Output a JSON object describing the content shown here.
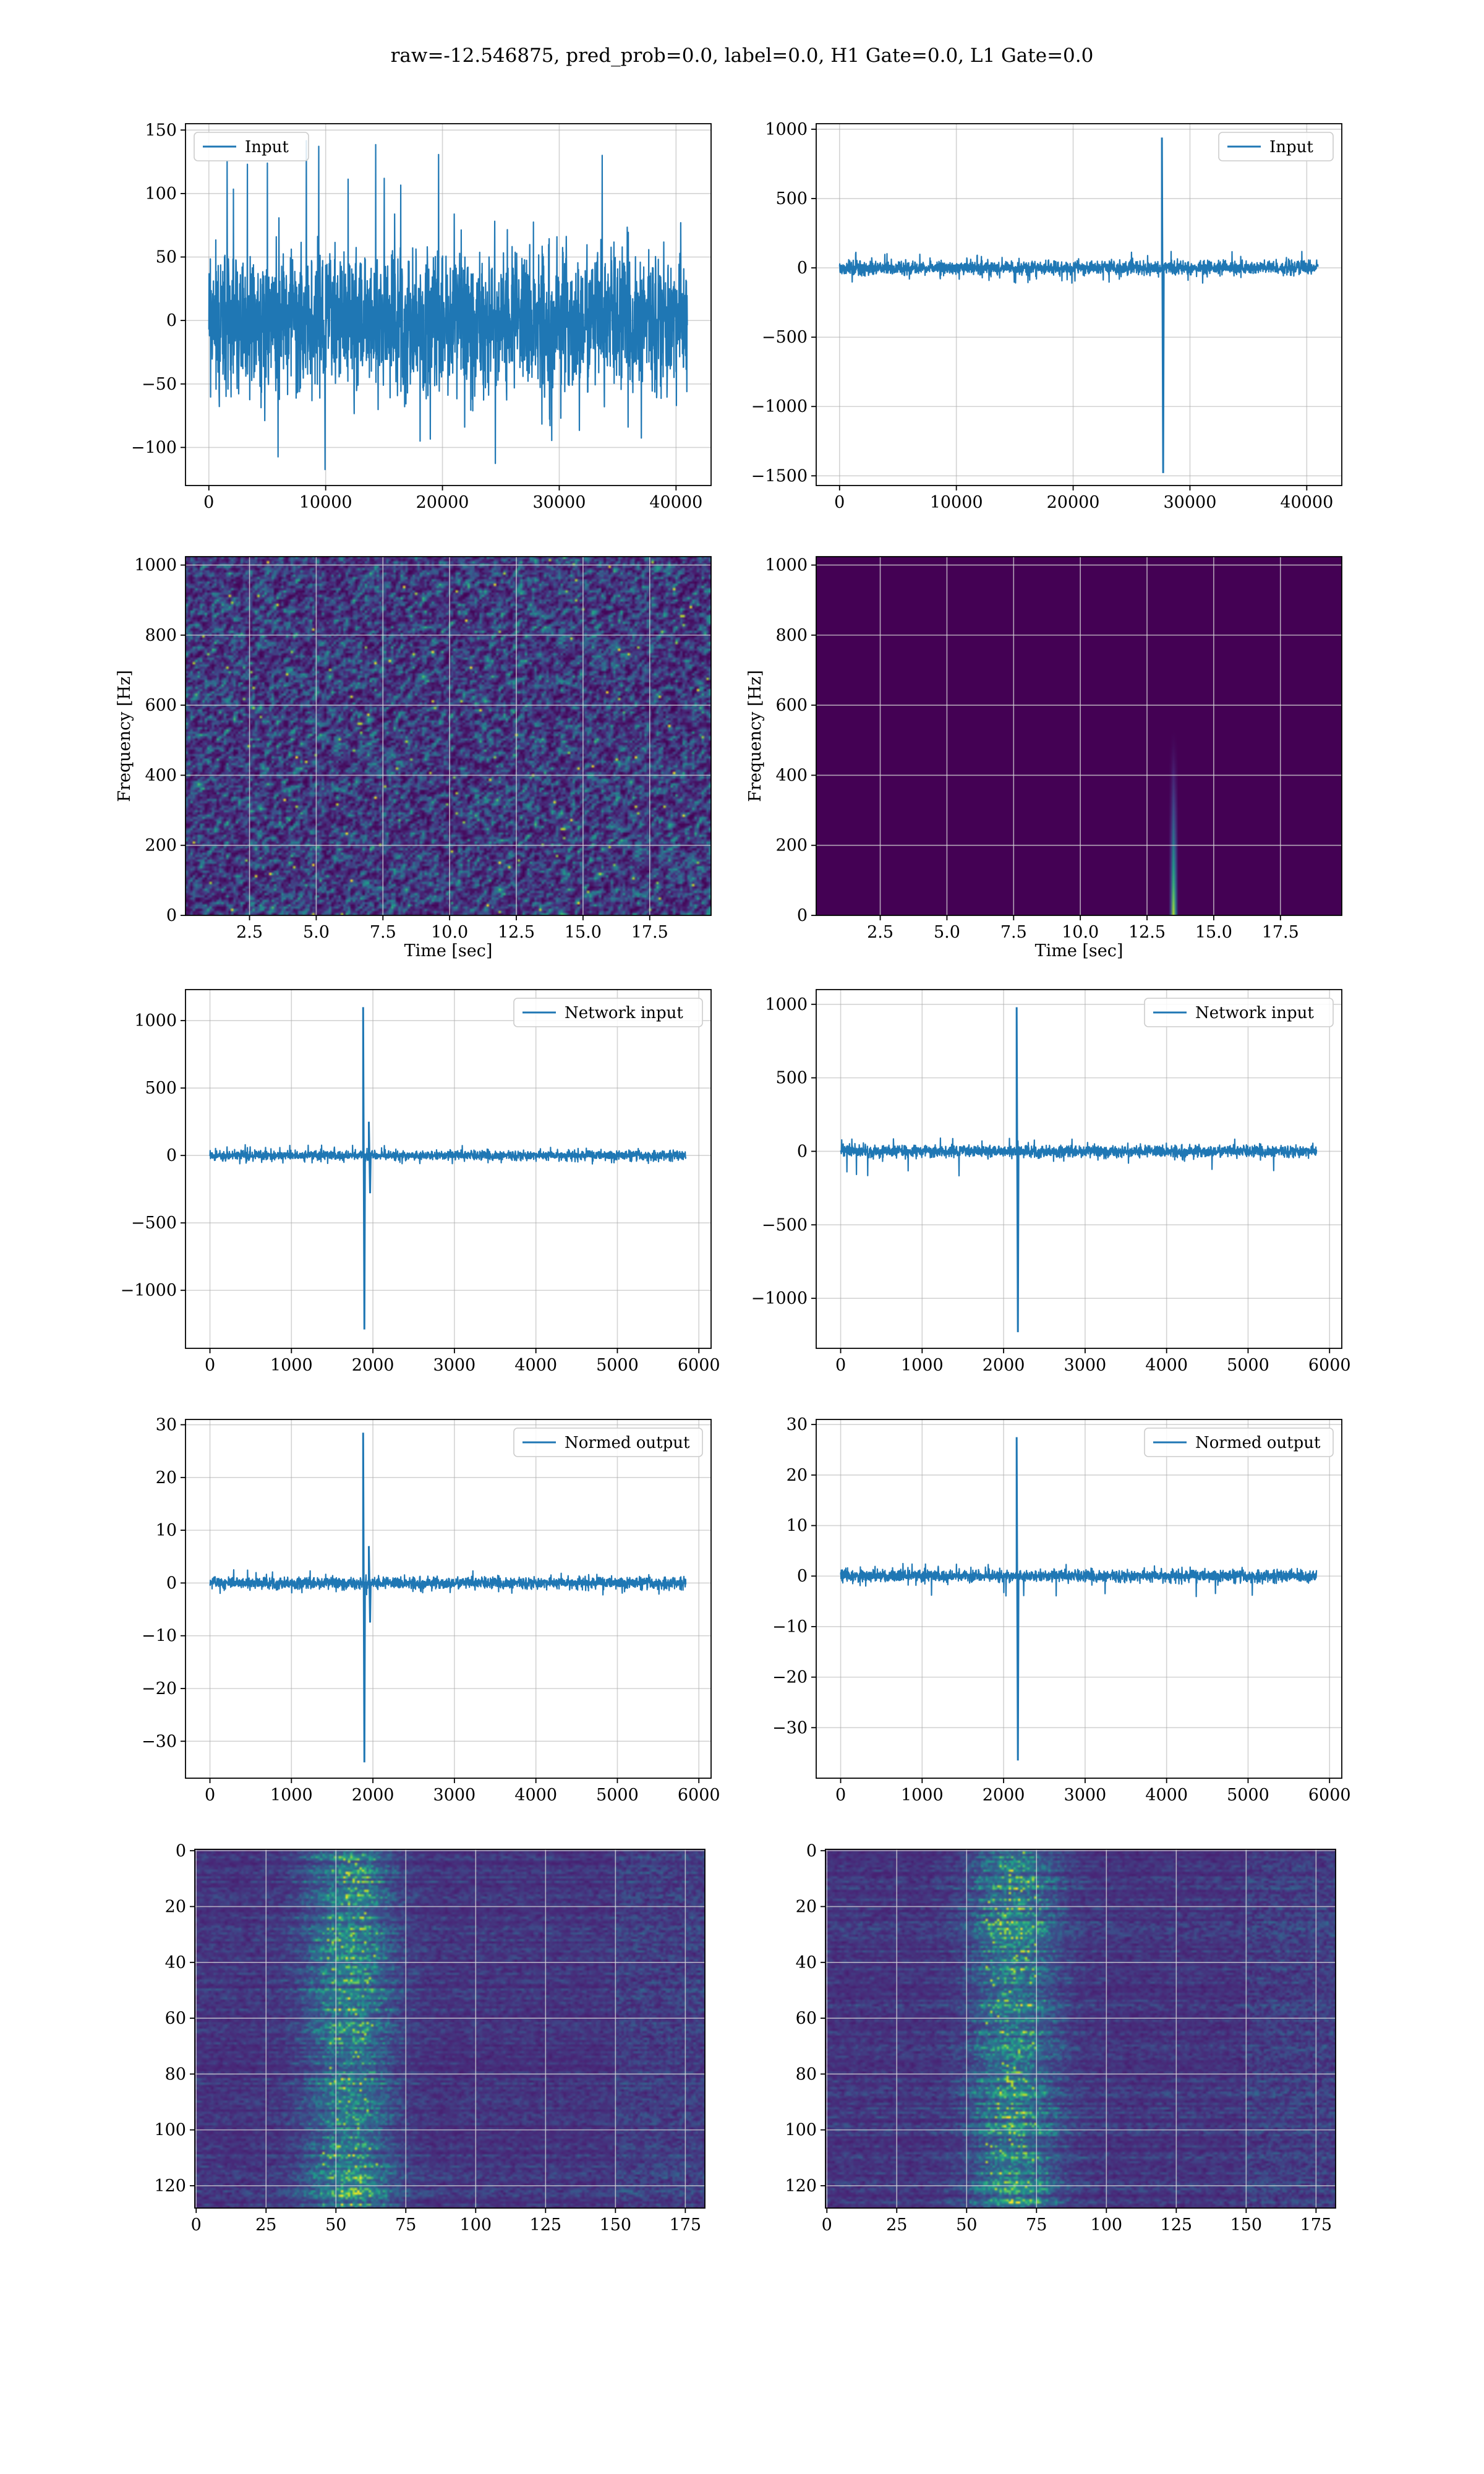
{
  "figure": {
    "suptitle": "raw=-12.546875, pred_prob=0.0, label=0.0, H1 Gate=0.0, L1 Gate=0.0"
  },
  "colors": {
    "line": "#1f77b4",
    "grid": "#b0b0b0"
  },
  "chart_data": [
    {
      "id": "input-h1",
      "type": "line",
      "legend": "Input",
      "legend_loc": "upper-left",
      "xlim": [
        -2000,
        43000
      ],
      "ylim": [
        -130,
        155
      ],
      "xticks": [
        0,
        10000,
        20000,
        30000,
        40000
      ],
      "xticklabels": [
        "0",
        "10000",
        "20000",
        "30000",
        "40000"
      ],
      "yticks": [
        -100,
        -50,
        0,
        50,
        100,
        150
      ],
      "yticklabels": [
        "−100",
        "−50",
        "0",
        "50",
        "100",
        "150"
      ],
      "x_range": [
        0,
        40960
      ],
      "noise_sigma": 28,
      "noise_extreme": [
        -120,
        142
      ],
      "spikes": []
    },
    {
      "id": "input-l1",
      "type": "line",
      "legend": "Input",
      "legend_loc": "upper-right",
      "xlim": [
        -2000,
        43000
      ],
      "ylim": [
        -1570,
        1040
      ],
      "xticks": [
        0,
        10000,
        20000,
        30000,
        40000
      ],
      "xticklabels": [
        "0",
        "10000",
        "20000",
        "30000",
        "40000"
      ],
      "yticks": [
        -1500,
        -1000,
        -500,
        0,
        500,
        1000
      ],
      "yticklabels": [
        "−1500",
        "−1000",
        "−500",
        "0",
        "500",
        "1000"
      ],
      "x_range": [
        0,
        40960
      ],
      "noise_sigma": 25,
      "noise_extreme": [
        -110,
        120
      ],
      "spikes": [
        {
          "x": 27600,
          "max": 940,
          "min": -1480
        }
      ]
    },
    {
      "id": "spectrogram-h1",
      "type": "heatmap",
      "xlabel": "Time [sec]",
      "ylabel": "Frequency [Hz]",
      "xlim": [
        0.1,
        19.8
      ],
      "ylim": [
        0,
        1024
      ],
      "xticks": [
        2.5,
        5.0,
        7.5,
        10.0,
        12.5,
        15.0,
        17.5
      ],
      "xticklabels": [
        "2.5",
        "5.0",
        "7.5",
        "10.0",
        "12.5",
        "15.0",
        "17.5"
      ],
      "yticks": [
        0,
        200,
        400,
        600,
        800,
        1000
      ],
      "yticklabels": [
        "0",
        "200",
        "400",
        "600",
        "800",
        "1000"
      ],
      "pattern": "noise"
    },
    {
      "id": "spectrogram-l1",
      "type": "heatmap",
      "xlabel": "Time [sec]",
      "ylabel": "Frequency [Hz]",
      "xlim": [
        0.1,
        19.8
      ],
      "ylim": [
        0,
        1024
      ],
      "xticks": [
        2.5,
        5.0,
        7.5,
        10.0,
        12.5,
        15.0,
        17.5
      ],
      "xticklabels": [
        "2.5",
        "5.0",
        "7.5",
        "10.0",
        "12.5",
        "15.0",
        "17.5"
      ],
      "yticks": [
        0,
        200,
        400,
        600,
        800,
        1000
      ],
      "yticklabels": [
        "0",
        "200",
        "400",
        "600",
        "800",
        "1000"
      ],
      "pattern": "glitch",
      "glitch_time": 13.5,
      "glitch_freq_max": 540
    },
    {
      "id": "network-input-h1",
      "type": "line",
      "legend": "Network input",
      "legend_loc": "upper-right",
      "xlim": [
        -300,
        6150
      ],
      "ylim": [
        -1430,
        1230
      ],
      "xticks": [
        0,
        1000,
        2000,
        3000,
        4000,
        5000,
        6000
      ],
      "xticklabels": [
        "0",
        "1000",
        "2000",
        "3000",
        "4000",
        "5000",
        "6000"
      ],
      "yticks": [
        -1000,
        -500,
        0,
        500,
        1000
      ],
      "yticklabels": [
        "−1000",
        "−500",
        "0",
        "500",
        "1000"
      ],
      "x_range": [
        0,
        5840
      ],
      "noise_sigma": 18,
      "noise_extreme": [
        -70,
        80
      ],
      "spikes": [
        {
          "x": 1880,
          "max": 1100,
          "min": -1290
        },
        {
          "x": 1950,
          "max": 250,
          "min": -280
        }
      ]
    },
    {
      "id": "network-input-l1",
      "type": "line",
      "legend": "Network input",
      "legend_loc": "upper-right",
      "xlim": [
        -300,
        6150
      ],
      "ylim": [
        -1340,
        1100
      ],
      "xticks": [
        0,
        1000,
        2000,
        3000,
        4000,
        5000,
        6000
      ],
      "xticklabels": [
        "0",
        "1000",
        "2000",
        "3000",
        "4000",
        "5000",
        "6000"
      ],
      "yticks": [
        -1000,
        -500,
        0,
        500,
        1000
      ],
      "yticklabels": [
        "−1000",
        "−500",
        "0",
        "500",
        "1000"
      ],
      "x_range": [
        0,
        5840
      ],
      "noise_sigma": 20,
      "noise_extreme": [
        -170,
        90
      ],
      "spikes": [
        {
          "x": 2160,
          "max": 980,
          "min": -1230
        }
      ]
    },
    {
      "id": "normed-output-h1",
      "type": "line",
      "legend": "Normed output",
      "legend_loc": "upper-right",
      "xlim": [
        -300,
        6150
      ],
      "ylim": [
        -37,
        31
      ],
      "xticks": [
        0,
        1000,
        2000,
        3000,
        4000,
        5000,
        6000
      ],
      "xticklabels": [
        "0",
        "1000",
        "2000",
        "3000",
        "4000",
        "5000",
        "6000"
      ],
      "yticks": [
        -30,
        -20,
        -10,
        0,
        10,
        20,
        30
      ],
      "yticklabels": [
        "−30",
        "−20",
        "−10",
        "0",
        "10",
        "20",
        "30"
      ],
      "x_range": [
        0,
        5840
      ],
      "noise_sigma": 0.55,
      "noise_extreme": [
        -2.5,
        2.5
      ],
      "spikes": [
        {
          "x": 1880,
          "max": 28.5,
          "min": -34
        },
        {
          "x": 1950,
          "max": 7,
          "min": -7.5
        }
      ]
    },
    {
      "id": "normed-output-l1",
      "type": "line",
      "legend": "Normed output",
      "legend_loc": "upper-right",
      "xlim": [
        -300,
        6150
      ],
      "ylim": [
        -40,
        31
      ],
      "xticks": [
        0,
        1000,
        2000,
        3000,
        4000,
        5000,
        6000
      ],
      "xticklabels": [
        "0",
        "1000",
        "2000",
        "3000",
        "4000",
        "5000",
        "6000"
      ],
      "yticks": [
        -30,
        -20,
        -10,
        0,
        10,
        20,
        30
      ],
      "yticklabels": [
        "−30",
        "−20",
        "−10",
        "0",
        "10",
        "20",
        "30"
      ],
      "x_range": [
        0,
        5840
      ],
      "noise_sigma": 0.6,
      "noise_extreme": [
        -4.5,
        2.5
      ],
      "spikes": [
        {
          "x": 2160,
          "max": 27.5,
          "min": -36.5
        }
      ]
    },
    {
      "id": "feature-map-h1",
      "type": "heatmap",
      "origin": "top",
      "xlim": [
        -0.5,
        182
      ],
      "ylim": [
        -0.5,
        128
      ],
      "xticks": [
        0,
        25,
        50,
        75,
        100,
        125,
        150,
        175
      ],
      "xticklabels": [
        "0",
        "25",
        "50",
        "75",
        "100",
        "125",
        "150",
        "175"
      ],
      "yticks": [
        0,
        20,
        40,
        60,
        80,
        100,
        120
      ],
      "yticklabels": [
        "0",
        "20",
        "40",
        "60",
        "80",
        "100",
        "120"
      ],
      "pattern": "features",
      "active_center": 55
    },
    {
      "id": "feature-map-l1",
      "type": "heatmap",
      "origin": "top",
      "xlim": [
        -0.5,
        182
      ],
      "ylim": [
        -0.5,
        128
      ],
      "xticks": [
        0,
        25,
        50,
        75,
        100,
        125,
        150,
        175
      ],
      "xticklabels": [
        "0",
        "25",
        "50",
        "75",
        "100",
        "125",
        "150",
        "175"
      ],
      "yticks": [
        0,
        20,
        40,
        60,
        80,
        100,
        120
      ],
      "yticklabels": [
        "0",
        "20",
        "40",
        "60",
        "80",
        "100",
        "120"
      ],
      "pattern": "features",
      "active_center": 67
    }
  ]
}
